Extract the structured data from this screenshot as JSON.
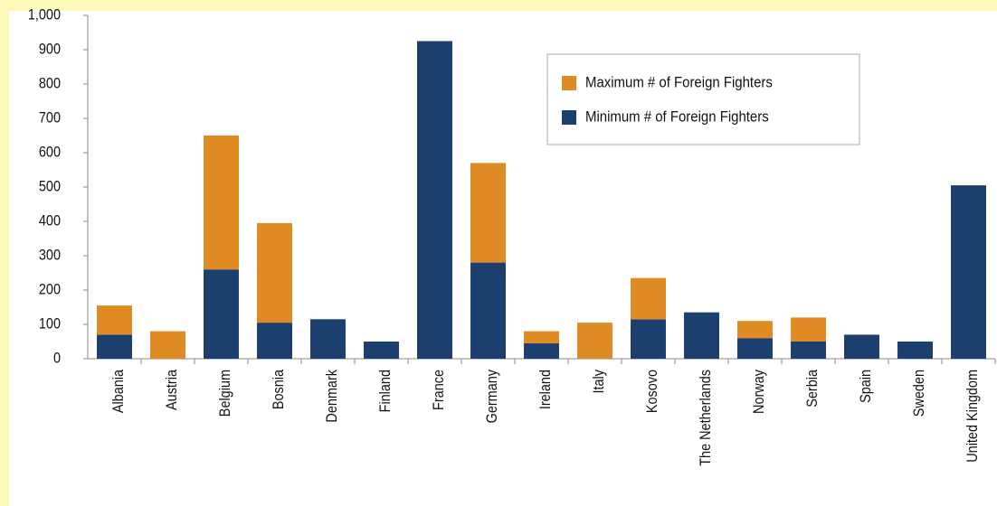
{
  "chart_data": {
    "type": "stacked_bar",
    "categories": [
      "Albania",
      "Austria",
      "Belgium",
      "Bosnia",
      "Denmark",
      "Finland",
      "France",
      "Germany",
      "Ireland",
      "Italy",
      "Kosovo",
      "The Netherlands",
      "Norway",
      "Serbia",
      "Spain",
      "Sweden",
      "United Kingdom"
    ],
    "series": [
      {
        "name": "Minimum # of Foreign Fighters",
        "color": "#1b3f6f",
        "values": [
          70,
          0,
          260,
          105,
          115,
          50,
          925,
          280,
          45,
          0,
          115,
          135,
          60,
          50,
          70,
          50,
          505
        ]
      },
      {
        "name": "Maximum # of Foreign Fighters",
        "color": "#e08a24",
        "values": [
          85,
          80,
          390,
          290,
          0,
          0,
          0,
          290,
          35,
          105,
          120,
          0,
          50,
          70,
          0,
          0,
          0
        ]
      }
    ],
    "ylim": [
      0,
      1000
    ],
    "yticks": [
      0,
      100,
      200,
      300,
      400,
      500,
      600,
      700,
      800,
      900,
      {
        "value": 1000,
        "label": "1,000"
      }
    ],
    "legend": "upper-center"
  }
}
